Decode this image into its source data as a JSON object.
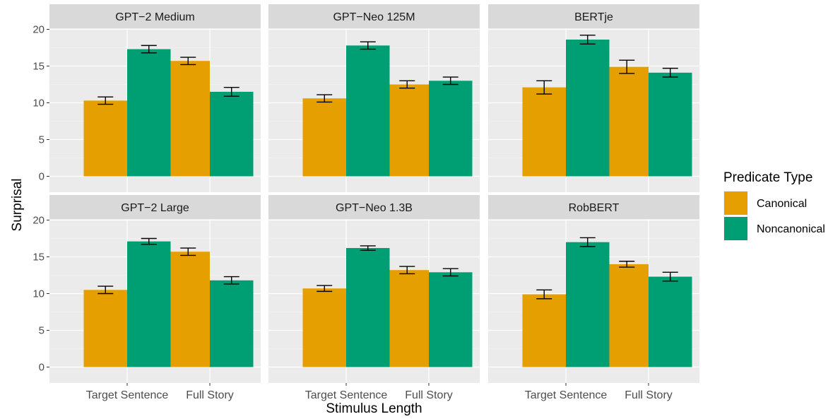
{
  "chart_data": {
    "type": "bar",
    "title": "",
    "xlabel": "Stimulus Length",
    "ylabel": "Surprisal",
    "ylim": [
      0,
      20
    ],
    "yticks": [
      "0",
      "5",
      "10",
      "15",
      "20"
    ],
    "categories": [
      "Target Sentence",
      "Full Story"
    ],
    "grid": true,
    "facet_layout": "2 rows x 3 columns",
    "legend": {
      "title": "Predicate Type",
      "position": "right",
      "entries": [
        {
          "name": "Canonical",
          "color": "#E69F00"
        },
        {
          "name": "Noncanonical",
          "color": "#009E73"
        }
      ]
    },
    "panels": [
      {
        "title": "GPT−2 Medium",
        "series": [
          {
            "name": "Canonical",
            "values": [
              10.3,
              15.7
            ],
            "error": [
              0.5,
              0.5
            ]
          },
          {
            "name": "Noncanonical",
            "values": [
              17.3,
              11.5
            ],
            "error": [
              0.5,
              0.6
            ]
          }
        ]
      },
      {
        "title": "GPT−Neo 125M",
        "series": [
          {
            "name": "Canonical",
            "values": [
              10.6,
              12.5
            ],
            "error": [
              0.5,
              0.5
            ]
          },
          {
            "name": "Noncanonical",
            "values": [
              17.8,
              13.0
            ],
            "error": [
              0.5,
              0.5
            ]
          }
        ]
      },
      {
        "title": "BERTje",
        "series": [
          {
            "name": "Canonical",
            "values": [
              12.1,
              14.9
            ],
            "error": [
              0.9,
              0.9
            ]
          },
          {
            "name": "Noncanonical",
            "values": [
              18.6,
              14.1
            ],
            "error": [
              0.6,
              0.6
            ]
          }
        ]
      },
      {
        "title": "GPT−2 Large",
        "series": [
          {
            "name": "Canonical",
            "values": [
              10.5,
              15.7
            ],
            "error": [
              0.5,
              0.5
            ]
          },
          {
            "name": "Noncanonical",
            "values": [
              17.1,
              11.8
            ],
            "error": [
              0.4,
              0.5
            ]
          }
        ]
      },
      {
        "title": "GPT−Neo 1.3B",
        "series": [
          {
            "name": "Canonical",
            "values": [
              10.7,
              13.2
            ],
            "error": [
              0.4,
              0.5
            ]
          },
          {
            "name": "Noncanonical",
            "values": [
              16.2,
              12.9
            ],
            "error": [
              0.3,
              0.5
            ]
          }
        ]
      },
      {
        "title": "RobBERT",
        "series": [
          {
            "name": "Canonical",
            "values": [
              9.9,
              14.0
            ],
            "error": [
              0.6,
              0.4
            ]
          },
          {
            "name": "Noncanonical",
            "values": [
              17.0,
              12.3
            ],
            "error": [
              0.6,
              0.6
            ]
          }
        ]
      }
    ]
  }
}
